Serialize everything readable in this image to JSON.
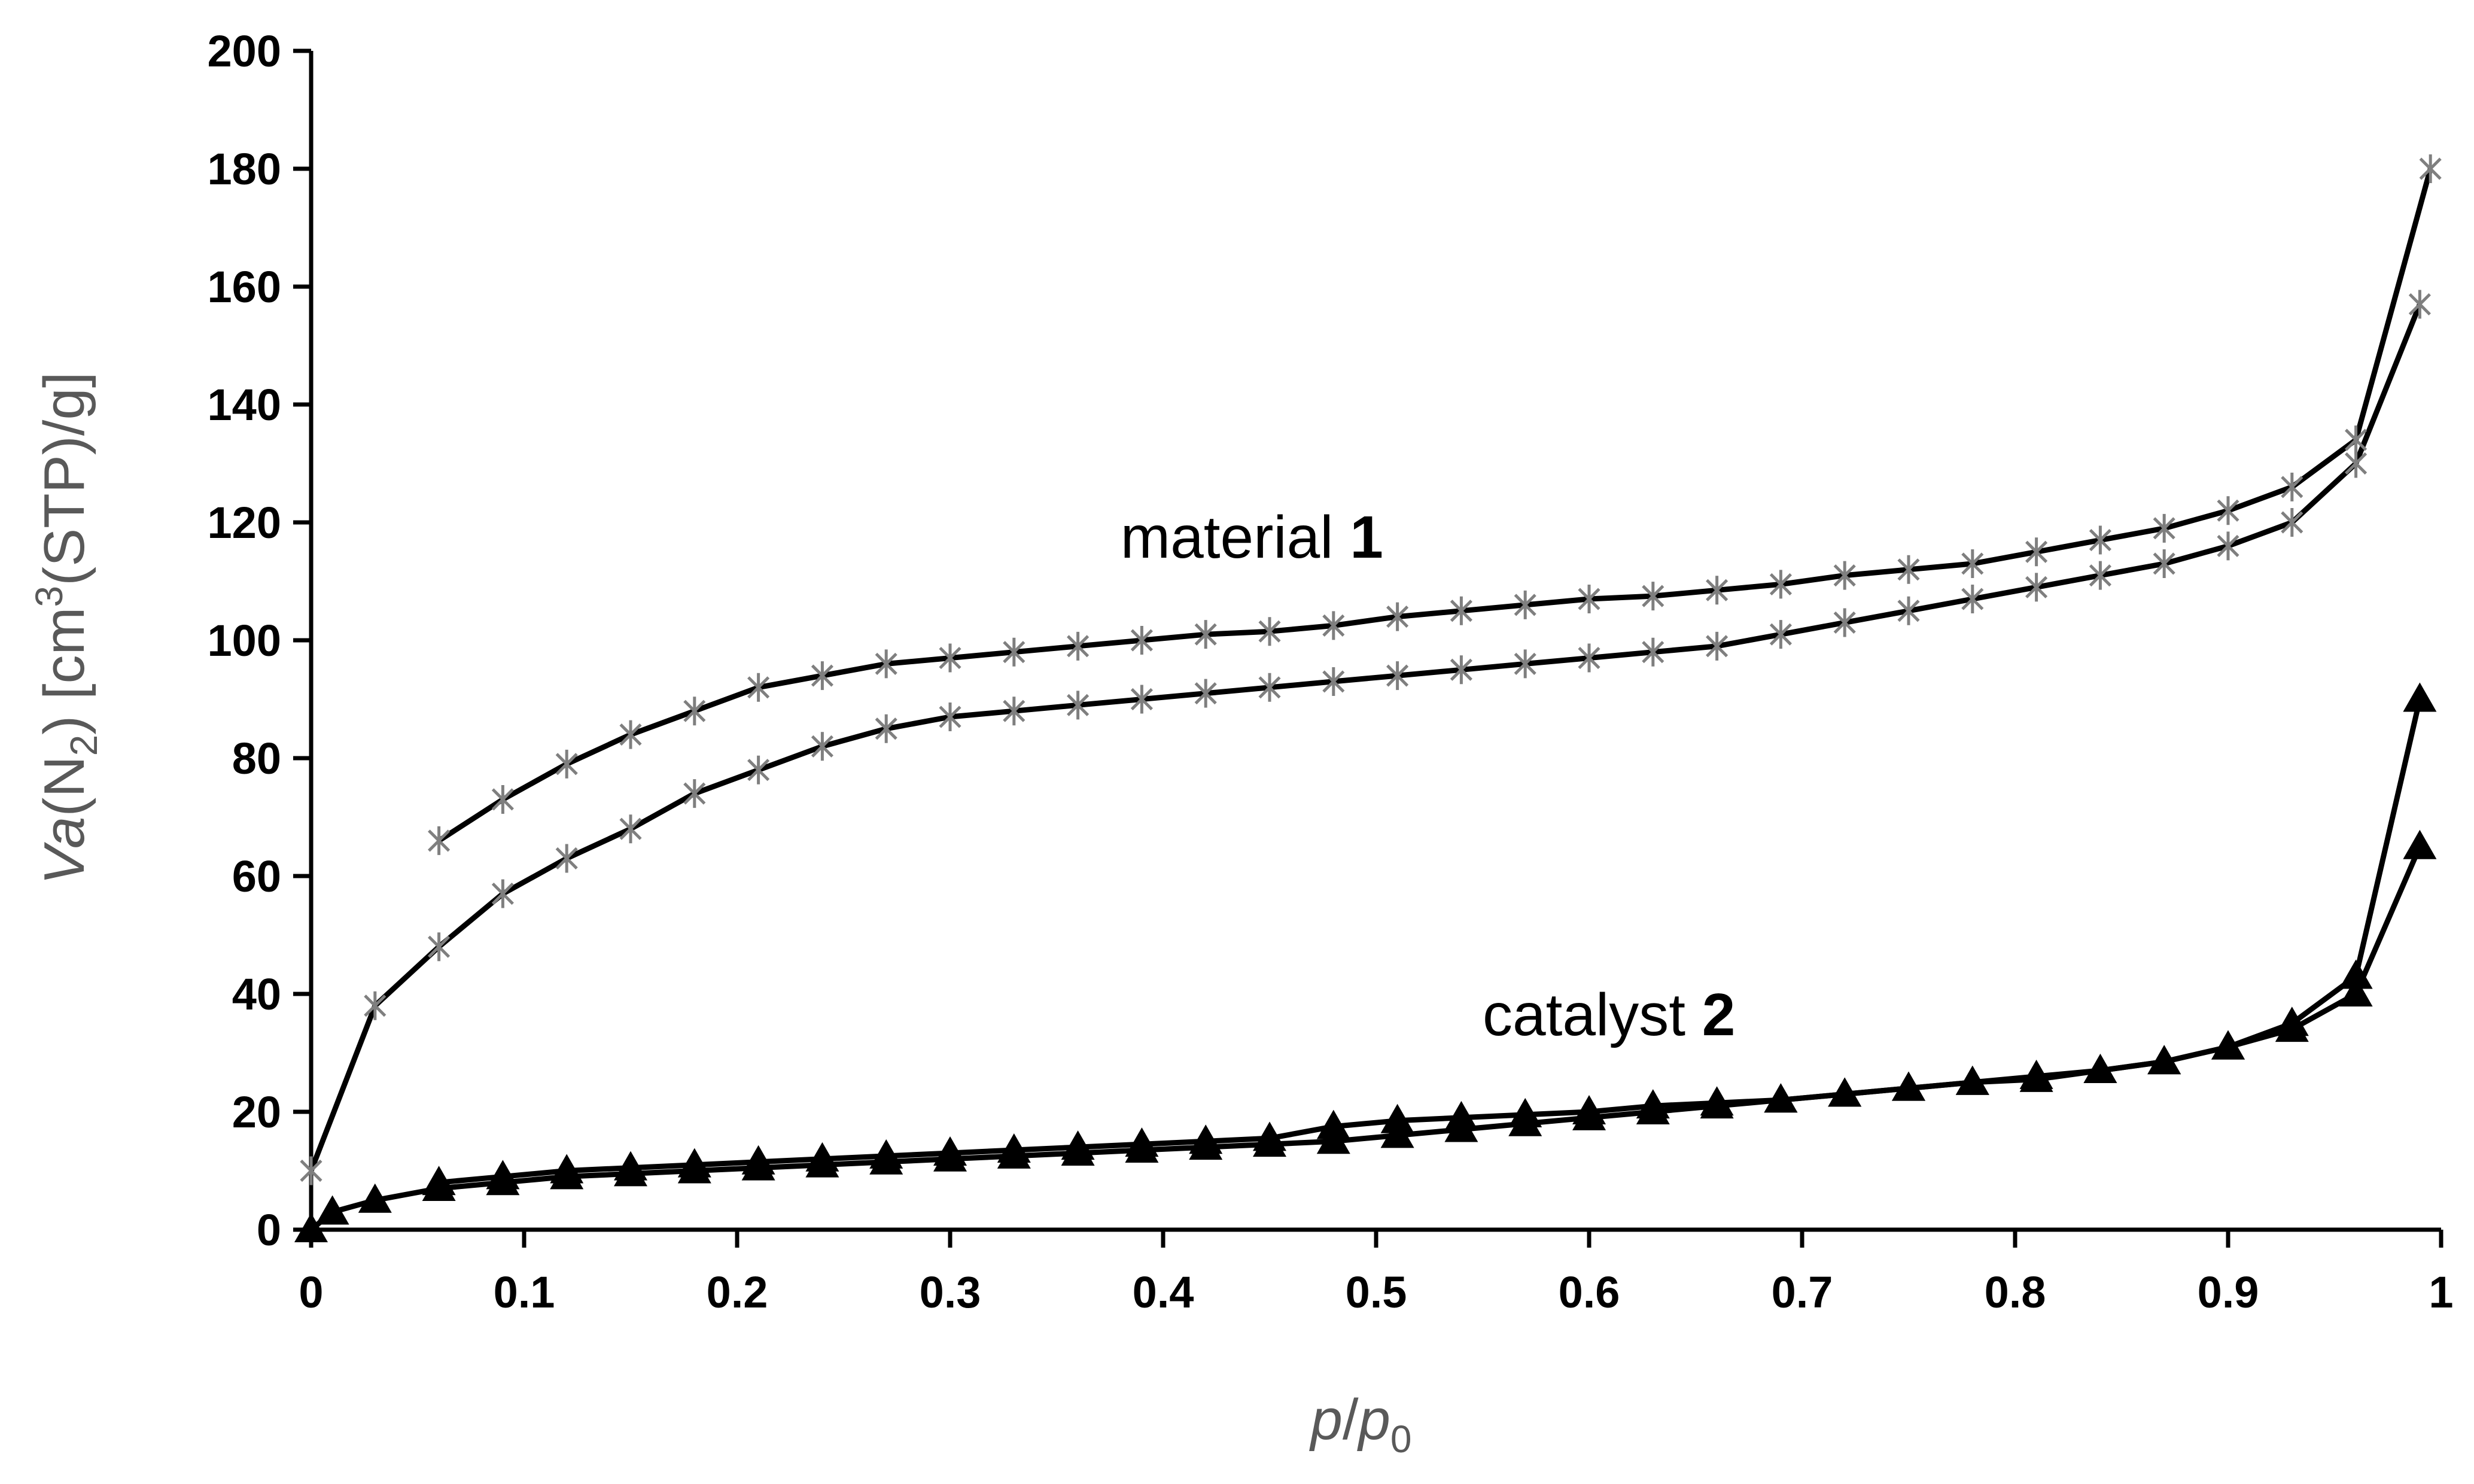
{
  "chart_data": {
    "type": "line",
    "title": "",
    "xlabel": {
      "p": "p",
      "slash": "/",
      "p0": "p",
      "sub": "0"
    },
    "ylabel": {
      "va": "Va",
      "n": "(N",
      "sub": "2",
      "rest1": ") [cm",
      "sup": "3",
      "rest2": "(STP)/g]"
    },
    "xlim": [
      0,
      1
    ],
    "ylim": [
      0,
      200
    ],
    "xticks": [
      0,
      0.1,
      0.2,
      0.3,
      0.4,
      0.5,
      0.6,
      0.7,
      0.8,
      0.9,
      1
    ],
    "xtick_labels": [
      "0",
      "0.1",
      "0.2",
      "0.3",
      "0.4",
      "0.5",
      "0.6",
      "0.7",
      "0.8",
      "0.9",
      "1"
    ],
    "yticks": [
      0,
      20,
      40,
      60,
      80,
      100,
      120,
      140,
      160,
      180,
      200
    ],
    "ytick_labels": [
      "0",
      "20",
      "40",
      "60",
      "80",
      "100",
      "120",
      "140",
      "160",
      "180",
      "200"
    ],
    "grid": false,
    "legend": "none",
    "annotations": [
      {
        "text": "material ",
        "bold": "1",
        "x": 0.38,
        "y": 114
      },
      {
        "text": "catalyst ",
        "bold": "2",
        "x": 0.55,
        "y": 33
      }
    ],
    "series": [
      {
        "marker": "asterisk",
        "marker_color": "#7f7f7f",
        "line_color": "#000000",
        "x": [
          0,
          0.03,
          0.06,
          0.09,
          0.12,
          0.15,
          0.18,
          0.21,
          0.24,
          0.27,
          0.3,
          0.33,
          0.36,
          0.39,
          0.42,
          0.45,
          0.48,
          0.51,
          0.54,
          0.57,
          0.6,
          0.63,
          0.66,
          0.69,
          0.72,
          0.75,
          0.78,
          0.81,
          0.84,
          0.87,
          0.9,
          0.93,
          0.96,
          0.99
        ],
        "y": [
          10,
          38,
          48,
          57,
          63,
          68,
          74,
          78,
          82,
          85,
          87,
          88,
          89,
          90,
          91,
          92,
          93,
          94,
          95,
          96,
          97,
          98,
          99,
          101,
          103,
          105,
          107,
          109,
          111,
          113,
          116,
          120,
          130,
          157
        ]
      },
      {
        "marker": "asterisk",
        "marker_color": "#7f7f7f",
        "line_color": "#000000",
        "x": [
          0.06,
          0.09,
          0.12,
          0.15,
          0.18,
          0.21,
          0.24,
          0.27,
          0.3,
          0.33,
          0.36,
          0.39,
          0.42,
          0.45,
          0.48,
          0.51,
          0.54,
          0.57,
          0.6,
          0.63,
          0.66,
          0.69,
          0.72,
          0.75,
          0.78,
          0.81,
          0.84,
          0.87,
          0.9,
          0.93,
          0.96,
          0.995
        ],
        "y": [
          66,
          73,
          79,
          84,
          88,
          92,
          94,
          96,
          97,
          98,
          99,
          100,
          101,
          101.5,
          102.5,
          104,
          105,
          106,
          107,
          107.5,
          108.5,
          109.5,
          111,
          112,
          113,
          115,
          117,
          119,
          122,
          126,
          134,
          180
        ]
      },
      {
        "marker": "triangle",
        "marker_color": "#000000",
        "line_color": "#000000",
        "x": [
          0,
          0.01,
          0.03,
          0.06,
          0.09,
          0.12,
          0.15,
          0.18,
          0.21,
          0.24,
          0.27,
          0.3,
          0.33,
          0.36,
          0.39,
          0.42,
          0.45,
          0.48,
          0.51,
          0.54,
          0.57,
          0.6,
          0.63,
          0.66,
          0.69,
          0.72,
          0.75,
          0.78,
          0.81,
          0.84,
          0.87,
          0.9,
          0.93,
          0.96,
          0.99
        ],
        "y": [
          0,
          3,
          5,
          7,
          8,
          9,
          9.5,
          10,
          10.5,
          11,
          11.5,
          12,
          12.5,
          13,
          13.5,
          14,
          14.5,
          15,
          16,
          17,
          18,
          19,
          20,
          21,
          22,
          23,
          24,
          25,
          26,
          27,
          28.5,
          31,
          34,
          40,
          65
        ]
      },
      {
        "marker": "triangle",
        "marker_color": "#000000",
        "line_color": "#000000",
        "x": [
          0.06,
          0.09,
          0.12,
          0.15,
          0.18,
          0.21,
          0.24,
          0.27,
          0.3,
          0.33,
          0.36,
          0.39,
          0.42,
          0.45,
          0.48,
          0.51,
          0.54,
          0.57,
          0.6,
          0.63,
          0.66,
          0.69,
          0.72,
          0.75,
          0.78,
          0.81,
          0.84,
          0.87,
          0.9,
          0.93,
          0.96,
          0.99
        ],
        "y": [
          8,
          9,
          10,
          10.5,
          11,
          11.5,
          12,
          12.5,
          13,
          13.5,
          14,
          14.5,
          15,
          15.5,
          17.5,
          18.5,
          19,
          19.5,
          20,
          21,
          21.5,
          22,
          23,
          24,
          25,
          25.5,
          27,
          28.5,
          31,
          35,
          43,
          90
        ]
      }
    ]
  }
}
